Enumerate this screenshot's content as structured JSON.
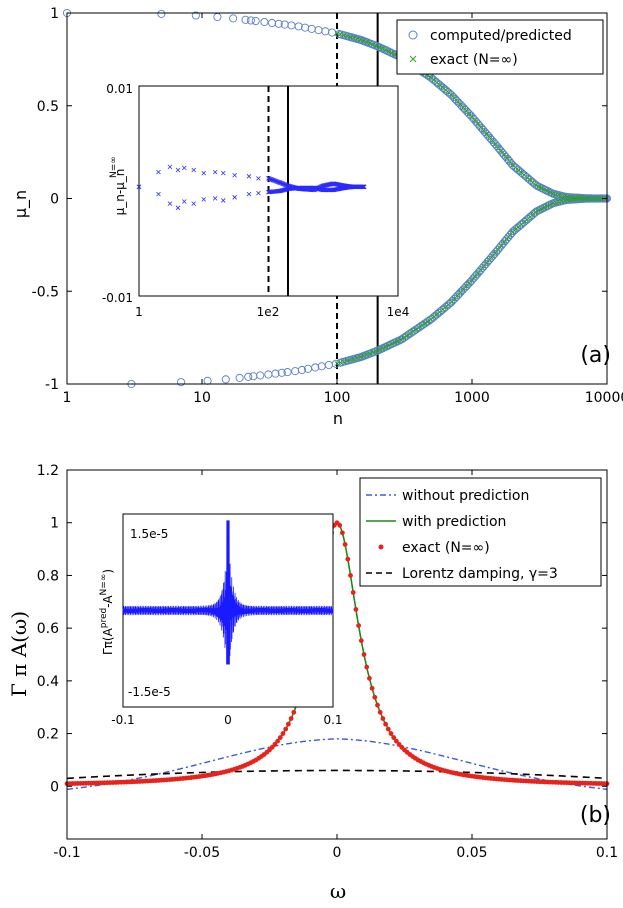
{
  "chart_data": [
    {
      "id": "a",
      "type": "scatter",
      "panel_label": "(a)",
      "xlabel": "n",
      "ylabel": "μ_n",
      "xscale": "log",
      "xlim": [
        1,
        10000
      ],
      "ylim": [
        -1,
        1
      ],
      "xticks": [
        1,
        10,
        100,
        1000,
        10000
      ],
      "xtick_labels": [
        "1",
        "10",
        "100",
        "1000",
        "10000"
      ],
      "yticks": [
        -1,
        -0.5,
        0,
        0.5,
        1
      ],
      "ytick_labels": [
        "-1",
        "-0.5",
        "0",
        "0.5",
        "1"
      ],
      "legend_position": "top-right",
      "vlines": [
        {
          "x": 100,
          "style": "dashed"
        },
        {
          "x": 200,
          "style": "solid"
        }
      ],
      "series": [
        {
          "name": "computed/predicted",
          "marker": "circle",
          "color": "#5b7fc9",
          "x": [
            1,
            2,
            3,
            5,
            7,
            10,
            15,
            20,
            30,
            50,
            70,
            100,
            150,
            200,
            300,
            500,
            700,
            1000,
            1500,
            2000,
            3000,
            4000,
            5000,
            7000,
            10000
          ],
          "y_abs": [
            1.0,
            1.0,
            1.0,
            0.995,
            0.99,
            0.985,
            0.975,
            0.965,
            0.95,
            0.93,
            0.91,
            0.89,
            0.855,
            0.82,
            0.76,
            0.65,
            0.56,
            0.44,
            0.29,
            0.18,
            0.07,
            0.025,
            0.008,
            0.001,
            0.0
          ]
        },
        {
          "name": "exact (N=∞)",
          "marker": "x",
          "color": "#2ca02c",
          "x_range": [
            100,
            10000
          ]
        }
      ],
      "inset": {
        "xscale": "log",
        "xlim": [
          1,
          10000
        ],
        "ylim": [
          -0.01,
          0.01
        ],
        "xtick_labels": [
          "1",
          "1e2",
          "1e4"
        ],
        "ytick_labels": [
          "-0.01",
          "0.01"
        ],
        "ylabel_main": "μ_n-μ_n",
        "ylabel_sup": "N=∞",
        "vlines": [
          {
            "x": 100,
            "style": "dashed"
          },
          {
            "x": 200,
            "style": "solid"
          }
        ],
        "x": [
          1,
          2,
          3,
          4,
          5,
          7,
          10,
          15,
          20,
          30,
          50,
          70,
          100,
          150,
          200,
          300,
          500,
          700,
          1000,
          1500,
          2000,
          3000
        ],
        "y_upper": [
          0.0004,
          0.0018,
          0.0023,
          0.002,
          0.0022,
          0.002,
          0.0017,
          0.0018,
          0.0017,
          0.0015,
          0.0014,
          0.0012,
          0.0012,
          0.0008,
          0.0005,
          0.0002,
          0.0001,
          0.0005,
          0.0007,
          0.0005,
          0.0004,
          0.0004
        ],
        "y_lower": [
          0.0004,
          -0.0003,
          -0.0012,
          -0.0016,
          -0.001,
          -0.0012,
          -0.0008,
          -0.0007,
          -0.0009,
          -0.0006,
          -0.0003,
          -0.0002,
          -0.0001,
          0.0,
          0.0002,
          0.0003,
          0.0003,
          0.0001,
          0.0001,
          0.0003,
          0.0004,
          0.0004
        ]
      }
    },
    {
      "id": "b",
      "type": "line",
      "panel_label": "(b)",
      "xlabel": "ω",
      "ylabel": "Γ π A(ω)",
      "xlim": [
        -0.1,
        0.1
      ],
      "ylim": [
        -0.2,
        1.2
      ],
      "xticks": [
        -0.1,
        -0.05,
        0,
        0.05,
        0.1
      ],
      "xtick_labels": [
        "-0.1",
        "-0.05",
        "0",
        "0.05",
        "0.1"
      ],
      "yticks": [
        0,
        0.2,
        0.4,
        0.6,
        0.8,
        1.0,
        1.2
      ],
      "ytick_labels": [
        "0",
        "0.2",
        "0.4",
        "0.6",
        "0.8",
        "1",
        "1.2"
      ],
      "legend_position": "top-right",
      "lorentz_half_width": 0.01,
      "series": [
        {
          "name": "without prediction",
          "style": "dashdot",
          "color": "#3a5ad8",
          "peak": 0.18,
          "half_width": 0.075
        },
        {
          "name": "with prediction",
          "style": "solid",
          "color": "#1a8a1a"
        },
        {
          "name": "exact (N=∞)",
          "style": "dots",
          "color": "#e8231b"
        },
        {
          "name": "Lorentz damping, γ=3",
          "style": "dashed",
          "color": "#000000",
          "peak": 0.06,
          "tail": 0.03
        }
      ],
      "inset": {
        "xlim": [
          -0.1,
          0.1
        ],
        "ylim": [
          -1.5e-05,
          1.5e-05
        ],
        "xtick_labels": [
          "-0.1",
          "0",
          "0.1"
        ],
        "ytick_labels": [
          "-1.5e-5",
          "1.5e-5"
        ],
        "ylabel_main": "Γπ(A",
        "ylabel_sup": "pred",
        "ylabel_mid": "-A",
        "ylabel_sup2": "N=∞",
        "ylabel_end": ")",
        "color": "#1a1aff"
      }
    }
  ],
  "colors": {
    "primary_marker": "#5b7fc9",
    "green": "#1a8a1a",
    "red": "#e8231b",
    "blue": "#1a1aff"
  }
}
